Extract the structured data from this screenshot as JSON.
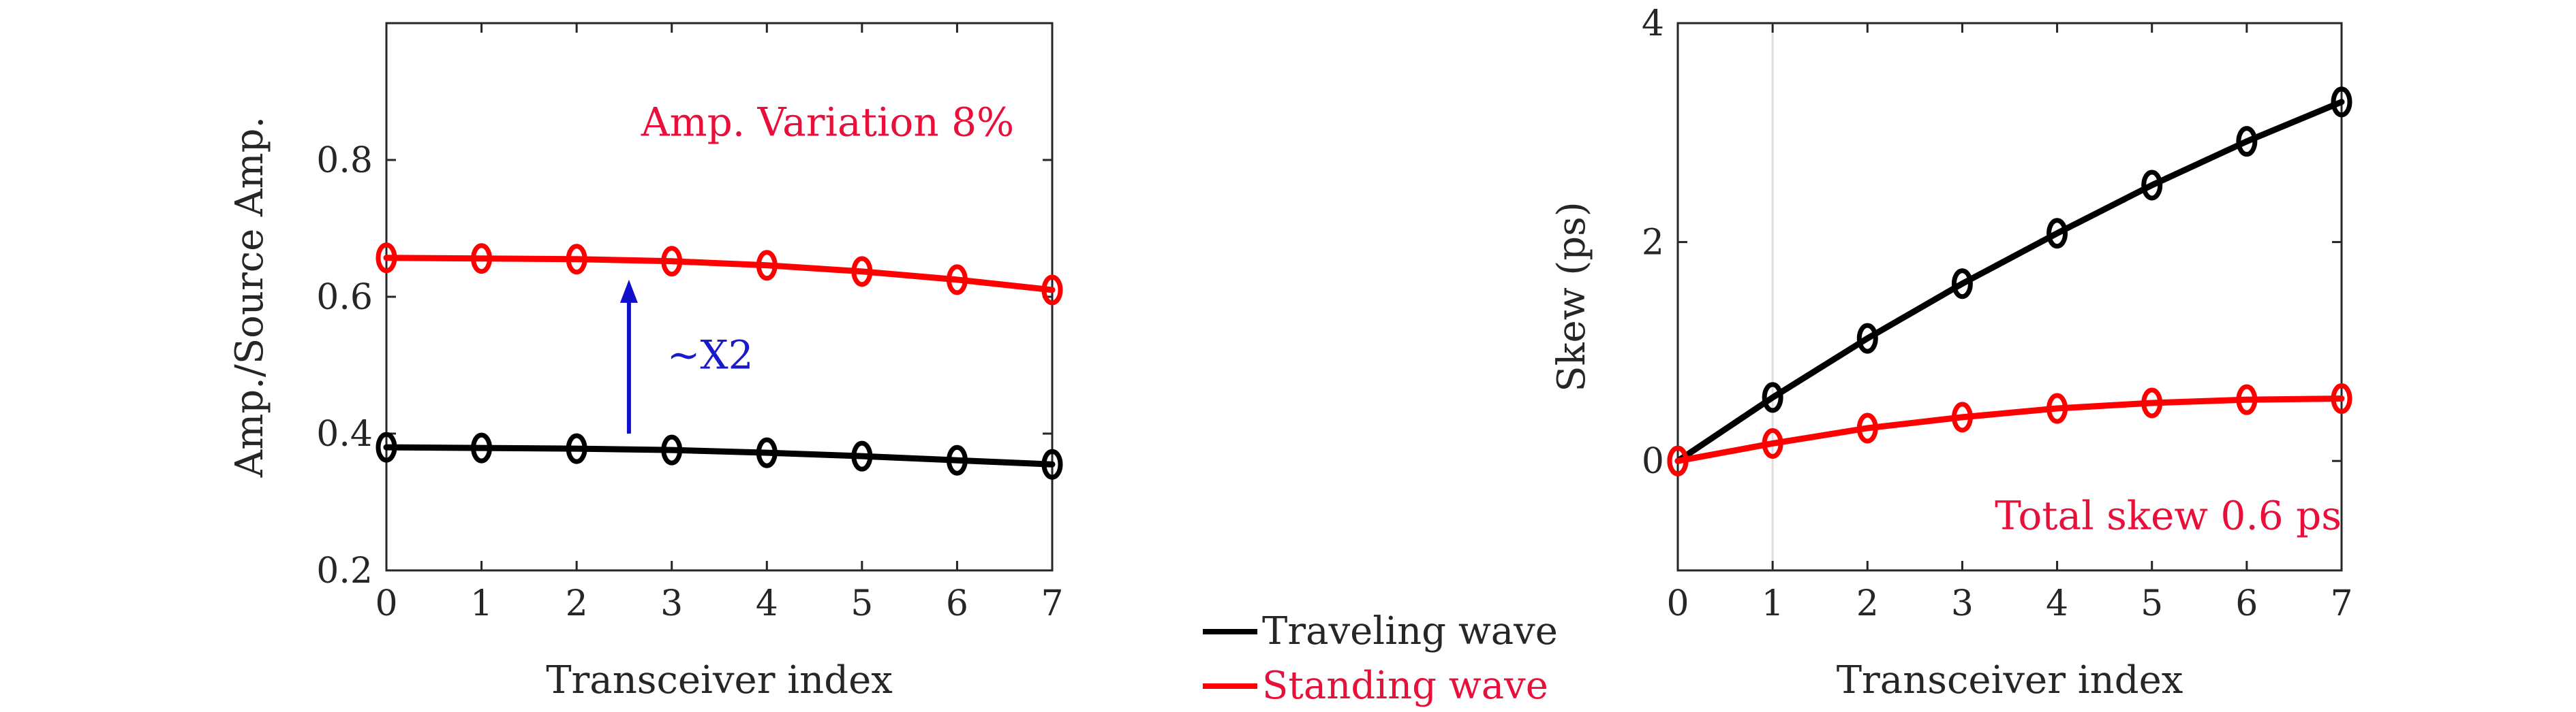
{
  "legend": {
    "entries": [
      {
        "label": "Traveling wave",
        "color": "#000000",
        "text_color": "#262626"
      },
      {
        "label": "Standing wave",
        "color": "#ff0000",
        "text_color": "#e8103a"
      }
    ]
  },
  "chart_data": [
    {
      "type": "line",
      "xlabel": "Transceiver index",
      "ylabel": "Amp./Source Amp.",
      "xlim": [
        0,
        7
      ],
      "ylim": [
        0.2,
        1.0
      ],
      "xticks": [
        0,
        1,
        2,
        3,
        4,
        5,
        6,
        7
      ],
      "yticks": [
        0.2,
        0.4,
        0.6,
        0.8
      ],
      "x": [
        0,
        1,
        2,
        3,
        4,
        5,
        6,
        7
      ],
      "series": [
        {
          "name": "Traveling wave",
          "color": "#000000",
          "values": [
            0.38,
            0.379,
            0.378,
            0.376,
            0.372,
            0.367,
            0.361,
            0.355
          ]
        },
        {
          "name": "Standing wave",
          "color": "#ff0000",
          "values": [
            0.657,
            0.656,
            0.655,
            0.652,
            0.646,
            0.637,
            0.625,
            0.61
          ]
        }
      ],
      "annotations": [
        {
          "text": "Amp. Variation 8%",
          "color": "#e8103a",
          "x": 6.6,
          "y": 0.855
        },
        {
          "text": "~X2",
          "color": "#1a1acc",
          "x": 2.95,
          "y": 0.515
        }
      ],
      "arrow": {
        "x": 2.55,
        "y_from": 0.4,
        "y_to": 0.625,
        "color": "#1010cc"
      }
    },
    {
      "type": "line",
      "xlabel": "Transceiver index",
      "ylabel": "Skew (ps)",
      "xlim": [
        0,
        7
      ],
      "ylim": [
        -1,
        4
      ],
      "xticks": [
        0,
        1,
        2,
        3,
        4,
        5,
        6,
        7
      ],
      "yticks": [
        0,
        2,
        4
      ],
      "x": [
        0,
        1,
        2,
        3,
        4,
        5,
        6,
        7
      ],
      "series": [
        {
          "name": "Traveling wave",
          "color": "#000000",
          "values": [
            0,
            0.58,
            1.12,
            1.62,
            2.08,
            2.52,
            2.92,
            3.28
          ]
        },
        {
          "name": "Standing wave",
          "color": "#ff0000",
          "values": [
            0,
            0.16,
            0.3,
            0.4,
            0.48,
            0.53,
            0.56,
            0.57
          ]
        }
      ],
      "annotations": [
        {
          "text": "Total skew 0.6 ps",
          "color": "#e8103a",
          "x": 7.0,
          "y": -0.5
        }
      ],
      "vline": {
        "x": 1,
        "color": "#dddddd"
      }
    }
  ]
}
